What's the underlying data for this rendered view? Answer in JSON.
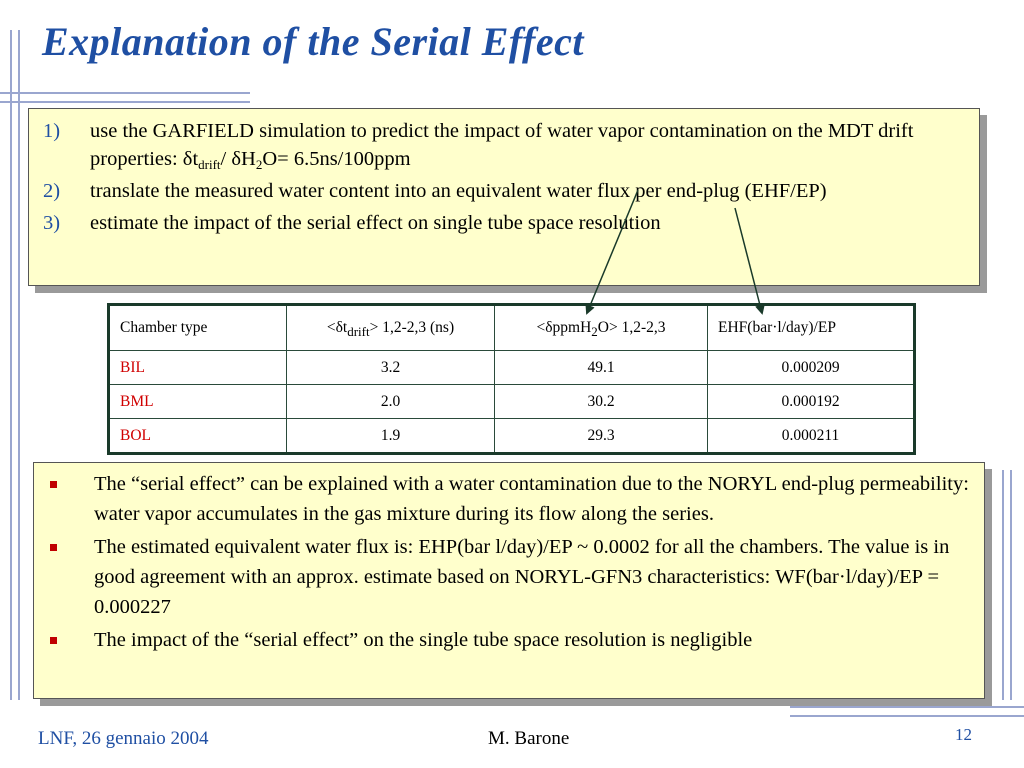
{
  "title": "Explanation of the Serial Effect",
  "steps": [
    {
      "num": "1)",
      "text_a": "use the GARFIELD simulation to predict the impact of water vapor contamination on the MDT drift properties: δt",
      "sub1": "drift",
      "text_b": "/ δH",
      "sub2": "2",
      "text_c": "O= 6.5ns/100ppm"
    },
    {
      "num": "2)",
      "text": "translate the measured water content into an equivalent water flux per end-plug (EHF/EP)"
    },
    {
      "num": "3)",
      "text": "estimate the impact of the serial effect on single tube space resolution"
    }
  ],
  "table": {
    "headers": {
      "chamber": "Chamber type",
      "dt_a": "<δt",
      "dt_sub": "drift",
      "dt_b": "> 1,2-2,3 (ns)",
      "ppm_a": "<δppmH",
      "ppm_sub": "2",
      "ppm_b": "O> 1,2-2,3",
      "ehf": "EHF(bar·l/day)/EP"
    },
    "rows": [
      {
        "chamber": "BIL",
        "dt": "3.2",
        "ppm": "49.1",
        "ehf": "0.000209"
      },
      {
        "chamber": "BML",
        "dt": "2.0",
        "ppm": "30.2",
        "ehf": "0.000192"
      },
      {
        "chamber": "BOL",
        "dt": "1.9",
        "ppm": "29.3",
        "ehf": "0.000211"
      }
    ]
  },
  "bullets": [
    "The “serial effect” can be explained with a water contamination due to the NORYL end-plug permeability: water vapor accumulates in the gas mixture during its flow along the series.",
    "The estimated equivalent water flux is: EHP(bar l/day)/EP ~ 0.0002 for all the chambers. The value is in good agreement with an approx. estimate based on NORYL-GFN3 characteristics: WF(bar·l/day)/EP = 0.000227",
    "The impact of the “serial effect” on the single tube space resolution is negligible"
  ],
  "footer": {
    "left": "LNF, 26 gennaio 2004",
    "center": "M. Barone",
    "page": "12"
  },
  "colors": {
    "title": "#1f4fa3",
    "box_fill": "#ffffcc",
    "accent_red": "#d00000"
  }
}
